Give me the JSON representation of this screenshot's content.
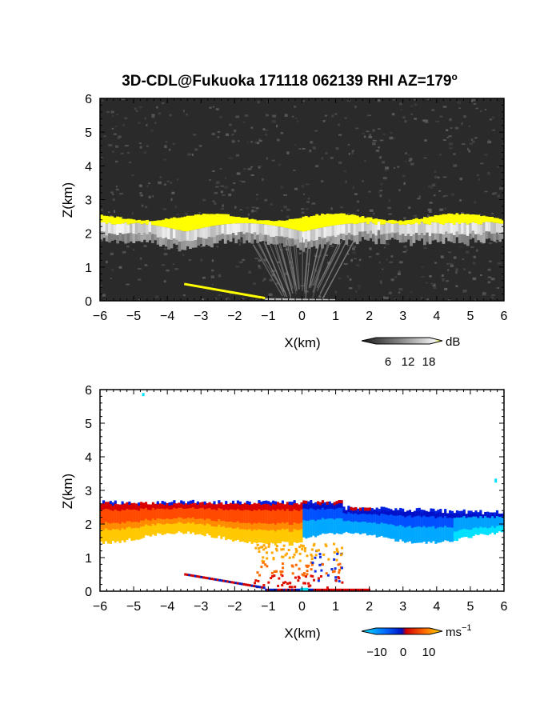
{
  "chart_data": [
    {
      "type": "heatmap",
      "title": "3D-CDL@Fukuoka 171118 062139 RHI AZ=179",
      "title_superscript": "o",
      "xlabel": "X(km)",
      "ylabel": "Z(km)",
      "xlim": [
        -6,
        6
      ],
      "ylim": [
        0,
        6
      ],
      "xticks": [
        "−6",
        "−5",
        "−4",
        "−3",
        "−2",
        "−1",
        "0",
        "1",
        "2",
        "3",
        "4",
        "5",
        "6"
      ],
      "yticks": [
        "0",
        "1",
        "2",
        "3",
        "4",
        "5",
        "6"
      ],
      "colorscale": "grayscale",
      "saturation_color": "#ffff00",
      "background_color": "#2a2a2a",
      "colorbar": {
        "unit": "dB",
        "ticks": [
          "6",
          "12",
          "18"
        ]
      },
      "features": [
        {
          "name": "cloud-top layer",
          "x": [
            -6,
            6
          ],
          "z": [
            2.2,
            2.6
          ],
          "level": "saturated"
        },
        {
          "name": "sub-cloud echo",
          "x": [
            -6,
            6
          ],
          "z": [
            1.7,
            2.2
          ],
          "level": "bright"
        },
        {
          "name": "low slant echo",
          "x": [
            -3.5,
            -1.0
          ],
          "z": [
            0.5,
            0.05
          ],
          "level": "saturated"
        }
      ]
    },
    {
      "type": "heatmap",
      "xlabel": "X(km)",
      "ylabel": "Z(km)",
      "xlim": [
        -6,
        6
      ],
      "ylim": [
        0,
        6
      ],
      "xticks": [
        "−6",
        "−5",
        "−4",
        "−3",
        "−2",
        "−1",
        "0",
        "1",
        "2",
        "3",
        "4",
        "5",
        "6"
      ],
      "yticks": [
        "0",
        "1",
        "2",
        "3",
        "4",
        "5",
        "6"
      ],
      "colorscale": "diverging cyan-blue-red-yellow",
      "colorbar": {
        "unit": "ms",
        "unit_exponent": "−1",
        "ticks": [
          "−10",
          "0",
          "10"
        ]
      },
      "features": [
        {
          "name": "cloud layer, approaching side",
          "x": [
            -6,
            0
          ],
          "z": [
            1.6,
            2.6
          ],
          "velocity_ms": [
            0,
            10
          ]
        },
        {
          "name": "cloud layer, receding side",
          "x": [
            0,
            6
          ],
          "z": [
            1.6,
            2.6
          ],
          "velocity_ms": [
            -10,
            0
          ]
        },
        {
          "name": "precipitation streaks",
          "x": [
            -1.5,
            1.2
          ],
          "z": [
            0.1,
            1.5
          ],
          "velocity_ms": [
            2,
            10
          ]
        }
      ]
    }
  ]
}
